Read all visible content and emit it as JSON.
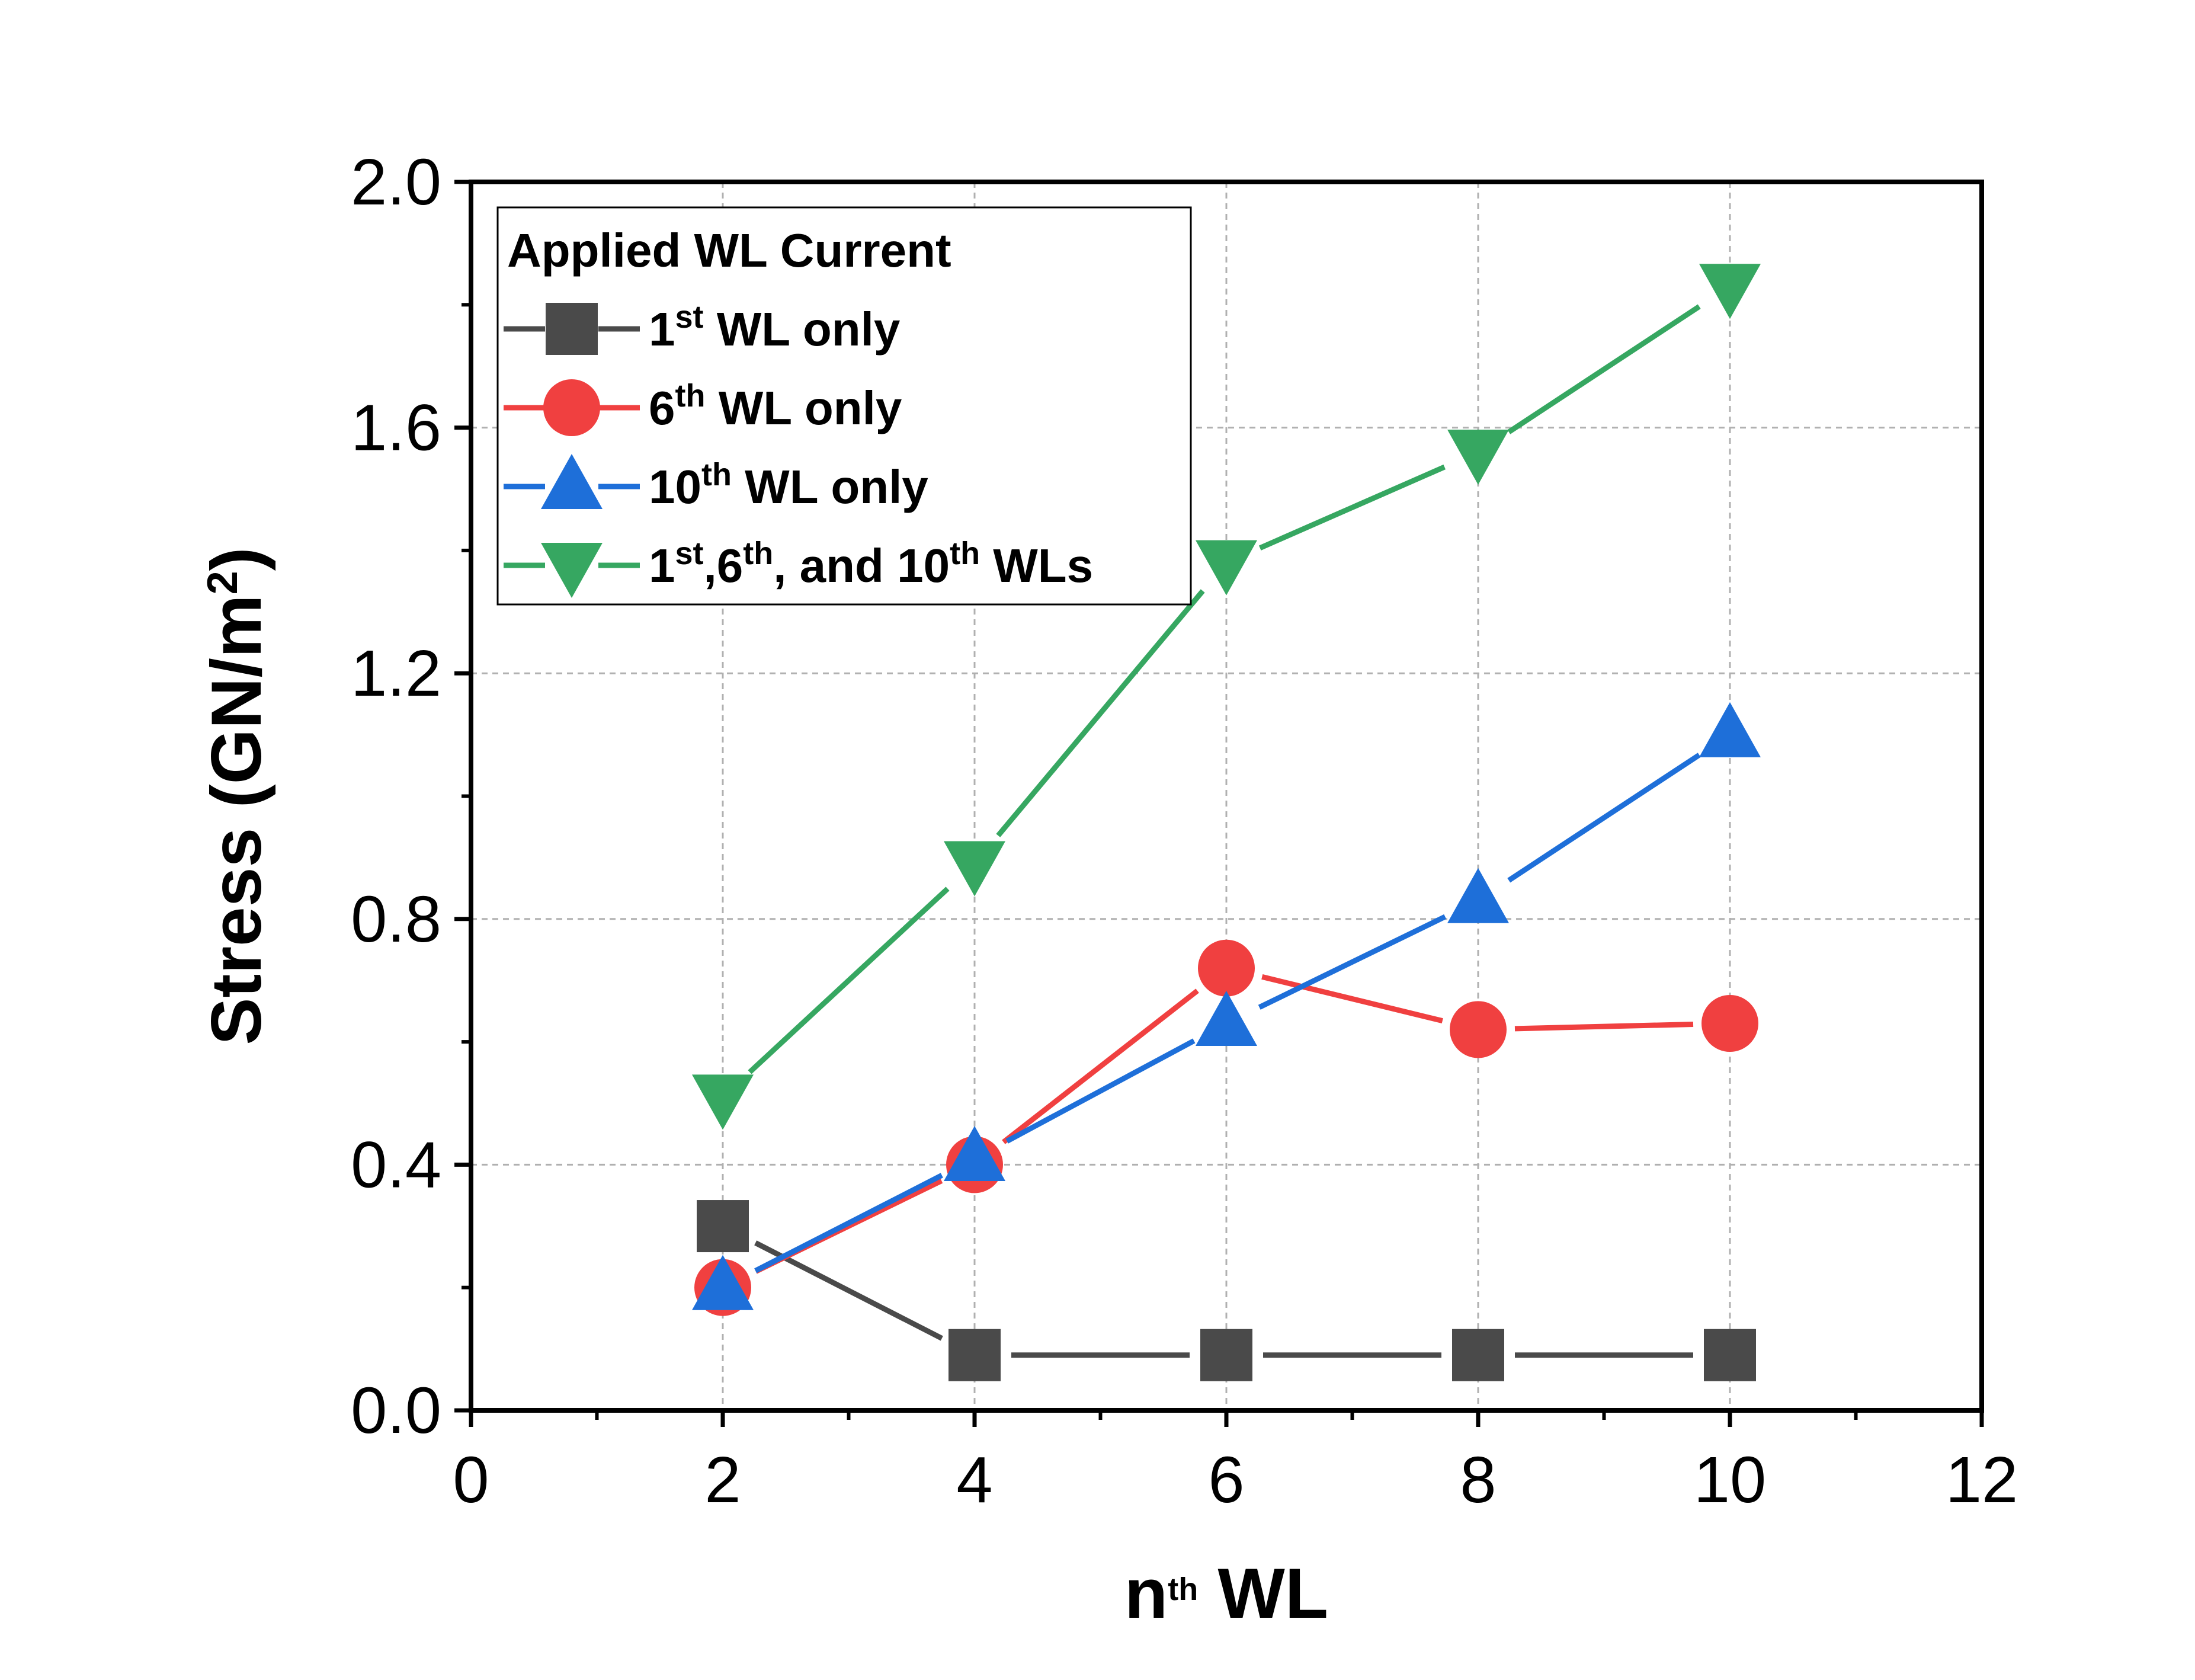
{
  "chart_data": {
    "type": "line",
    "xlabel": {
      "base": "n",
      "sup": "th",
      "rest": " WL"
    },
    "ylabel": {
      "base": "Stress (GN/m",
      "sup": "2",
      "rest": ")"
    },
    "xlim": [
      0,
      12
    ],
    "ylim": [
      0.0,
      2.0
    ],
    "x_ticks": [
      0,
      2,
      4,
      6,
      8,
      10,
      12
    ],
    "x_tick_labels": [
      "0",
      "2",
      "4",
      "6",
      "8",
      "10",
      "12"
    ],
    "y_ticks": [
      0.0,
      0.4,
      0.8,
      1.2,
      1.6,
      2.0
    ],
    "y_tick_labels": [
      "0.0",
      "0.4",
      "0.8",
      "1.2",
      "1.6",
      "2.0"
    ],
    "grid": true,
    "legend": {
      "title": "Applied WL Current",
      "position": "top-left"
    },
    "series": [
      {
        "name": "1st WL only",
        "label_parts": [
          [
            "1",
            ""
          ],
          [
            "st",
            "sup"
          ],
          [
            " WL only",
            ""
          ]
        ],
        "marker": "square",
        "color": "#4a4a4a",
        "x": [
          2,
          4,
          6,
          8,
          10
        ],
        "y": [
          0.3,
          0.09,
          0.09,
          0.09,
          0.09
        ]
      },
      {
        "name": "6th WL only",
        "label_parts": [
          [
            "6",
            ""
          ],
          [
            "th",
            "sup"
          ],
          [
            " WL only",
            ""
          ]
        ],
        "marker": "circle",
        "color": "#f04040",
        "x": [
          2,
          4,
          6,
          8,
          10
        ],
        "y": [
          0.2,
          0.4,
          0.72,
          0.62,
          0.63
        ]
      },
      {
        "name": "10th WL only",
        "label_parts": [
          [
            "10",
            ""
          ],
          [
            "th",
            "sup"
          ],
          [
            " WL only",
            ""
          ]
        ],
        "marker": "triangle-up",
        "color": "#1e6fd9",
        "x": [
          2,
          4,
          6,
          8,
          10
        ],
        "y": [
          0.2,
          0.41,
          0.63,
          0.83,
          1.1
        ]
      },
      {
        "name": "1st,6th, and 10th WLs",
        "label_parts": [
          [
            "1",
            ""
          ],
          [
            "st",
            "sup"
          ],
          [
            ",6",
            ""
          ],
          [
            "th",
            "sup"
          ],
          [
            ", and 10",
            ""
          ],
          [
            "th",
            "sup"
          ],
          [
            " WLs",
            ""
          ]
        ],
        "marker": "triangle-down",
        "color": "#36a761",
        "x": [
          2,
          4,
          6,
          8,
          10
        ],
        "y": [
          0.51,
          0.89,
          1.38,
          1.56,
          1.83
        ]
      }
    ]
  }
}
